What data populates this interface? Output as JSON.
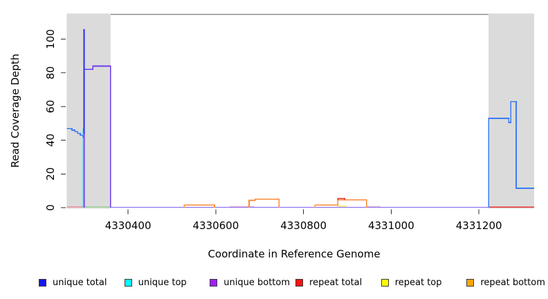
{
  "chart_data": {
    "type": "line",
    "title": "",
    "xlabel": "Coordinate in Reference Genome",
    "ylabel": "Read Coverage Depth",
    "xlim": [
      4330231,
      4331326
    ],
    "ylim": [
      0,
      115.2
    ],
    "grid": false,
    "x_ticks": {
      "values": [
        4330400,
        4330600,
        4330800,
        4331000,
        4331200
      ],
      "labels": [
        "4330400",
        "4330600",
        "4330800",
        "4331000",
        "4331200"
      ]
    },
    "y_ticks": {
      "values": [
        0,
        20,
        40,
        60,
        80,
        100
      ],
      "labels": [
        "0",
        "20",
        "40",
        "60",
        "80",
        "100"
      ]
    },
    "shaded_regions": [
      {
        "name": "masked-region-left",
        "x0": 4330260,
        "x1": 4330360
      },
      {
        "name": "masked-region-right",
        "x0": 4331222,
        "x1": 4331326
      }
    ],
    "region_color": "#dbdbdb",
    "top_boundary_line": {
      "x0": 4330360,
      "x1": 4331222,
      "y": 114.6,
      "color": "#8f8f8f"
    },
    "tick_color": "#2b2b2b",
    "series": [
      {
        "name": "repeat-total-baseline-left",
        "color": "#ef6079",
        "width": 1.4,
        "points": [
          [
            4330260,
            0.4
          ],
          [
            4330297,
            0.4
          ]
        ]
      },
      {
        "name": "green-baseline-left",
        "color": "#6cc46c",
        "width": 1.4,
        "points": [
          [
            4330298,
            0.4
          ],
          [
            4330360,
            0.4
          ]
        ]
      },
      {
        "name": "faint-pink-segment-1",
        "color": "#f3c3d3",
        "width": 1.4,
        "points": [
          [
            4330632,
            0.8
          ],
          [
            4330688,
            0.8
          ]
        ]
      },
      {
        "name": "faint-pink-segment-2",
        "color": "#f3c3d3",
        "width": 1.4,
        "points": [
          [
            4330944,
            0.8
          ],
          [
            4330976,
            0.8
          ]
        ]
      },
      {
        "name": "unique-top-spike",
        "color": "#2fd9ec",
        "width": 1.6,
        "points": [
          [
            4330298,
            0
          ],
          [
            4330298,
            47
          ]
        ]
      },
      {
        "name": "unique-total-steps-left",
        "color": "#3d7cf4",
        "width": 1.6,
        "points": [
          [
            4330260,
            47
          ],
          [
            4330272,
            47
          ],
          [
            4330272,
            46
          ],
          [
            4330279,
            46
          ],
          [
            4330279,
            45
          ],
          [
            4330285,
            45
          ],
          [
            4330285,
            44
          ],
          [
            4330291,
            44
          ],
          [
            4330291,
            43
          ],
          [
            4330297,
            43
          ],
          [
            4330297,
            42
          ],
          [
            4330300,
            42
          ]
        ]
      },
      {
        "name": "unique-bottom-baseline",
        "color": "#7d62f2",
        "width": 1.4,
        "points": [
          [
            4330360,
            0.2
          ],
          [
            4331222,
            0.2
          ]
        ]
      },
      {
        "name": "repeat-bottom-bump-1",
        "color": "#f98b38",
        "width": 1.6,
        "points": [
          [
            4330528,
            0
          ],
          [
            4330528,
            1.5
          ],
          [
            4330597,
            1.5
          ],
          [
            4330597,
            0
          ]
        ]
      },
      {
        "name": "repeat-bottom-bump-2",
        "color": "#f98b38",
        "width": 1.6,
        "points": [
          [
            4330676,
            0
          ],
          [
            4330676,
            4.3
          ],
          [
            4330690,
            4.3
          ],
          [
            4330690,
            5
          ],
          [
            4330744,
            5
          ],
          [
            4330744,
            0
          ]
        ]
      },
      {
        "name": "repeat-top-segment",
        "color": "#f5ef5a",
        "width": 1.5,
        "points": [
          [
            4330876,
            1
          ],
          [
            4330899,
            1
          ]
        ]
      },
      {
        "name": "repeat-bottom-bump-3",
        "color": "#f98b38",
        "width": 1.6,
        "points": [
          [
            4330826,
            0
          ],
          [
            4330826,
            1.6
          ],
          [
            4330878,
            1.6
          ],
          [
            4330878,
            4.6
          ],
          [
            4330944,
            4.6
          ],
          [
            4330944,
            0
          ]
        ]
      },
      {
        "name": "repeat-total-blip",
        "color": "#e83030",
        "width": 1.5,
        "points": [
          [
            4330878,
            4.6
          ],
          [
            4330878,
            5.4
          ],
          [
            4330894,
            5.4
          ],
          [
            4330894,
            4.6
          ]
        ]
      },
      {
        "name": "unique-bottom-main",
        "color": "#6b3bee",
        "width": 1.6,
        "points": [
          [
            4330300,
            0
          ],
          [
            4330300,
            82
          ],
          [
            4330320,
            82
          ],
          [
            4330320,
            84
          ],
          [
            4330360,
            84
          ],
          [
            4330360,
            0
          ]
        ]
      },
      {
        "name": "unique-total-spike",
        "color": "#2a2af2",
        "width": 2,
        "points": [
          [
            4330300,
            44
          ],
          [
            4330300,
            106
          ]
        ]
      },
      {
        "name": "repeat-total-baseline-right",
        "color": "#e83030",
        "width": 1.5,
        "points": [
          [
            4331222,
            0.4
          ],
          [
            4331326,
            0.4
          ]
        ]
      },
      {
        "name": "unique-total-right",
        "color": "#3d7cf4",
        "width": 1.6,
        "points": [
          [
            4331222,
            0
          ],
          [
            4331222,
            53
          ],
          [
            4331268,
            53
          ],
          [
            4331268,
            50.5
          ],
          [
            4331273,
            50.5
          ],
          [
            4331273,
            63
          ],
          [
            4331285,
            63
          ],
          [
            4331285,
            11.5
          ],
          [
            4331326,
            11.5
          ]
        ]
      }
    ],
    "legend_position": "bottom",
    "legend": [
      {
        "label": "unique total",
        "color": "#1414ff"
      },
      {
        "label": "unique top",
        "color": "#00ffff"
      },
      {
        "label": "unique bottom",
        "color": "#a020f0"
      },
      {
        "label": "repeat total",
        "color": "#ff1111"
      },
      {
        "label": "repeat top",
        "color": "#ffff00"
      },
      {
        "label": "repeat bottom",
        "color": "#ffa500"
      }
    ]
  }
}
